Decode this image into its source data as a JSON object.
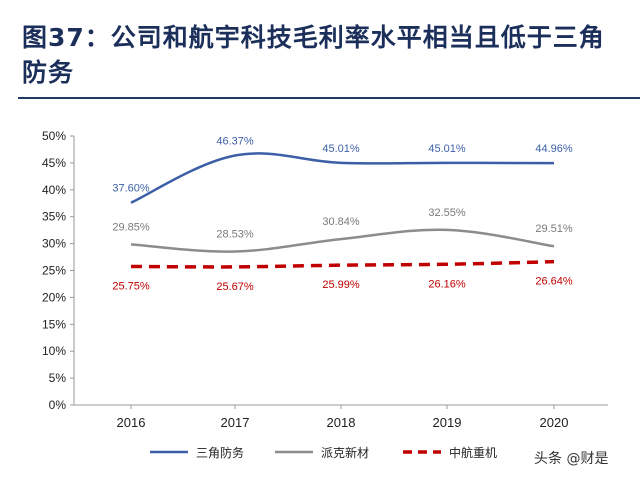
{
  "title": "图37：公司和航宇科技毛利率水平相当且低于三角防务",
  "watermark": "头条 @财是",
  "chart_data": {
    "type": "line",
    "categories": [
      "2016",
      "2017",
      "2018",
      "2019",
      "2020"
    ],
    "ylim": [
      0,
      50
    ],
    "yticks": [
      "0%",
      "5%",
      "10%",
      "15%",
      "20%",
      "25%",
      "30%",
      "35%",
      "40%",
      "45%",
      "50%"
    ],
    "grid": false,
    "legend_position": "bottom",
    "series": [
      {
        "name": "三角防务",
        "values": [
          37.6,
          46.37,
          45.01,
          45.01,
          44.96
        ],
        "labels": [
          "37.60%",
          "46.37%",
          "45.01%",
          "45.01%",
          "44.96%"
        ],
        "color": "#3c5fa8",
        "dash": false
      },
      {
        "name": "派克新材",
        "values": [
          29.85,
          28.53,
          30.84,
          32.55,
          29.51
        ],
        "labels": [
          "29.85%",
          "28.53%",
          "30.84%",
          "32.55%",
          "29.51%"
        ],
        "color": "#8c8c8c",
        "dash": false
      },
      {
        "name": "中航重机",
        "values": [
          25.75,
          25.67,
          25.99,
          26.16,
          26.64
        ],
        "labels": [
          "25.75%",
          "25.67%",
          "25.99%",
          "26.16%",
          "26.64%"
        ],
        "color": "#c00000",
        "dash": true
      }
    ]
  }
}
